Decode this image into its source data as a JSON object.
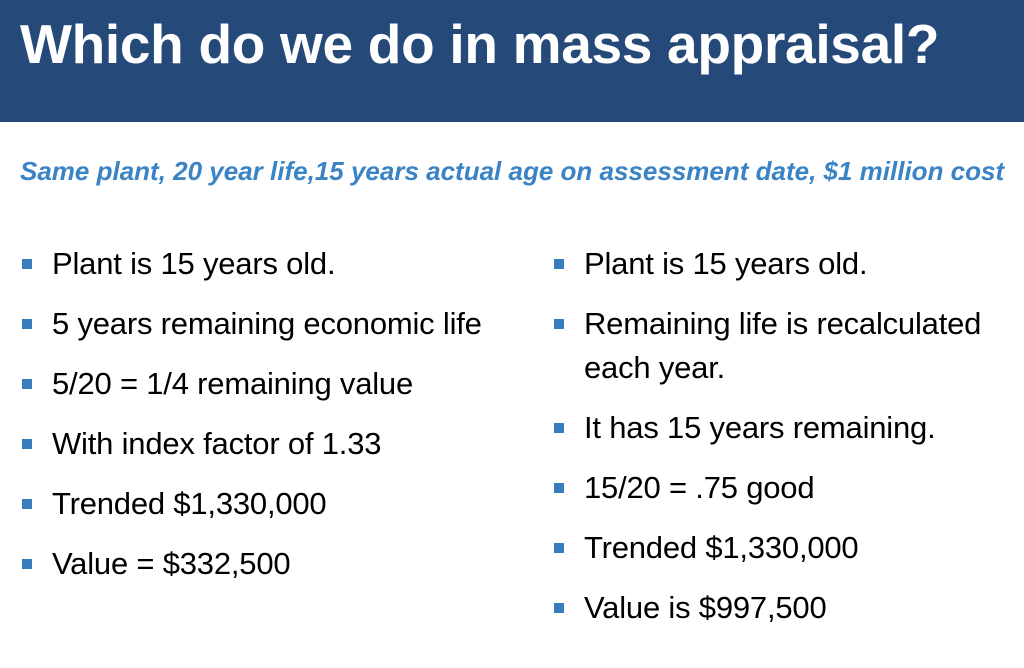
{
  "slide": {
    "title": "Which do we do in mass appraisal?",
    "subtitle": "Same plant, 20 year life,15 years actual age on assessment date, $1 million cost",
    "colors": {
      "title_bar": "#254a7a",
      "title_text": "#ffffff",
      "subtitle_text": "#3a83c4",
      "bullet_marker": "#3a7abf"
    },
    "left_column": [
      "Plant is 15 years old.",
      "5 years remaining economic life",
      "5/20 = 1/4 remaining value",
      "With index factor of 1.33",
      "Trended $1,330,000",
      "Value = $332,500"
    ],
    "right_column": [
      "Plant is 15 years old.",
      "Remaining life is recalculated each year.",
      "It has 15 years remaining.",
      "15/20 = .75 good",
      "Trended $1,330,000",
      "Value is $997,500"
    ]
  }
}
